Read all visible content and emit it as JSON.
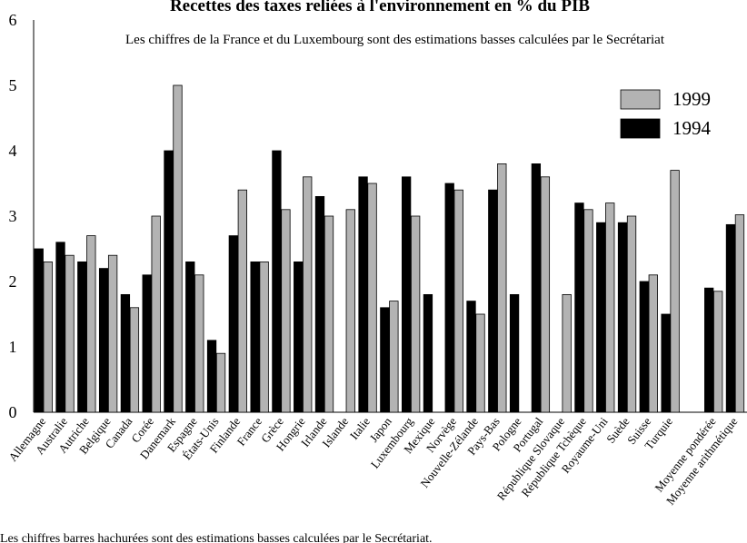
{
  "chart_data": {
    "type": "bar",
    "title": "Recettes des taxes reliées à l'environnement en % du PIB",
    "subtitle": "Les chiffres de la France et du Luxembourg sont des estimations basses calculées par le Secrétariat",
    "footnote": "Les chiffres barres hachurées sont des estimations basses calculées par le Secrétariat.",
    "categories": [
      "Allemagne",
      "Australie",
      "Autriche",
      "Belgique",
      "Canada",
      "Corée",
      "Danemark",
      "Espagne",
      "États-Unis",
      "Finlande",
      "France",
      "Grèce",
      "Hongrie",
      "Irlande",
      "Islande",
      "Italie",
      "Japon",
      "Luxembourg",
      "Mexique",
      "Norvège",
      "Nouvelle-Zélande",
      "Pays-Bas",
      "Pologne",
      "Portugal",
      "République Slovaque",
      "République Tchèque",
      "Royaume-Uni",
      "Suède",
      "Suisse",
      "Turquie",
      null,
      "Moyenne pondérée",
      "Moyenne arithmétique"
    ],
    "series": [
      {
        "name": "1999",
        "color": "#b3b3b3",
        "values": [
          2.3,
          2.4,
          2.7,
          2.4,
          1.6,
          3.0,
          5.0,
          2.1,
          0.9,
          3.4,
          2.3,
          3.1,
          3.6,
          3.0,
          3.1,
          3.5,
          1.7,
          3.0,
          null,
          3.4,
          1.5,
          3.8,
          null,
          3.6,
          1.8,
          3.1,
          3.2,
          3.0,
          2.1,
          3.7,
          null,
          1.85,
          3.02
        ]
      },
      {
        "name": "1994",
        "color": "#000000",
        "values": [
          2.5,
          2.6,
          2.3,
          2.2,
          1.8,
          2.1,
          4.0,
          2.3,
          1.1,
          2.7,
          2.3,
          4.0,
          2.3,
          3.3,
          null,
          3.6,
          1.6,
          3.6,
          1.8,
          3.5,
          1.7,
          3.4,
          1.8,
          3.8,
          null,
          3.2,
          2.9,
          2.9,
          2.0,
          1.5,
          null,
          1.9,
          2.87
        ]
      }
    ],
    "ylim": [
      0,
      6
    ],
    "yticks": [
      0,
      1,
      2,
      3,
      4,
      5,
      6
    ],
    "grid": false
  }
}
